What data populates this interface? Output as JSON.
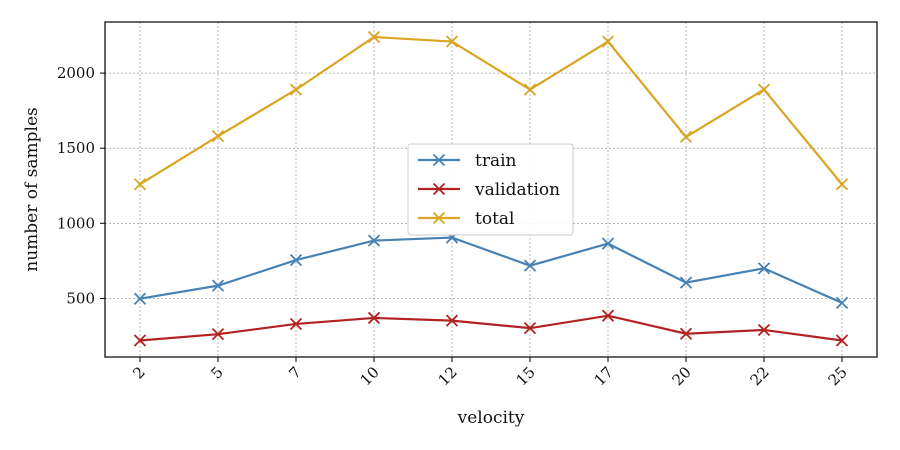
{
  "chart_data": {
    "type": "line",
    "title": "",
    "xlabel": "velocity",
    "ylabel": "number of samples",
    "categories": [
      "2",
      "5",
      "7",
      "10",
      "12",
      "15",
      "17",
      "20",
      "22",
      "25"
    ],
    "ylim": [
      110,
      2340
    ],
    "yticks": [
      500,
      1000,
      1500,
      2000
    ],
    "grid": true,
    "legend_position": "center",
    "marker": "x",
    "series": [
      {
        "name": "train",
        "color": "#4682b4",
        "values": [
          498,
          585,
          755,
          885,
          905,
          718,
          865,
          605,
          700,
          470
        ]
      },
      {
        "name": "validation",
        "color": "#b22222",
        "values": [
          220,
          262,
          330,
          370,
          352,
          302,
          385,
          265,
          290,
          220
        ]
      },
      {
        "name": "total",
        "color": "#daa520",
        "values": [
          1260,
          1580,
          1890,
          2240,
          2210,
          1890,
          2210,
          1575,
          1890,
          1260
        ]
      }
    ]
  }
}
